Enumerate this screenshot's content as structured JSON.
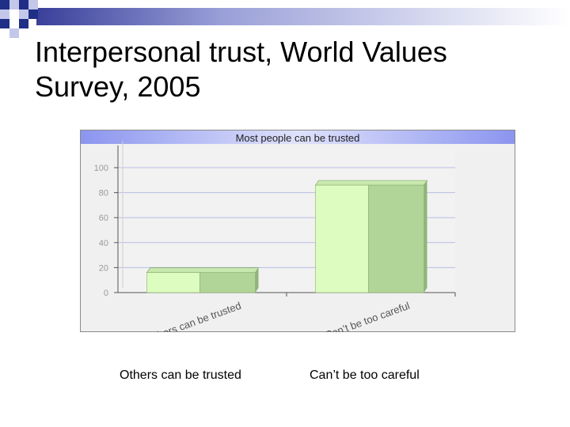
{
  "slide": {
    "title_line1": "Interpersonal trust, World Values",
    "title_line2": "Survey, 2005"
  },
  "chart_data": {
    "type": "bar",
    "title": "Most people can be trusted",
    "categories": [
      "Others can be trusted",
      "Can’t be too careful"
    ],
    "series": [
      {
        "values": [
          16,
          86
        ]
      }
    ],
    "ylim": [
      0,
      100
    ],
    "yticks": [
      "0",
      "20",
      "40",
      "60",
      "80",
      "100"
    ],
    "xlabel": "",
    "ylabel": "",
    "grid": true,
    "bar_front_color": "#dcfcc0",
    "bar_side_color": "#b1d598",
    "header_color": "#8f98ee"
  },
  "labels_below": [
    "Others can be trusted",
    "Can’t be too careful"
  ]
}
